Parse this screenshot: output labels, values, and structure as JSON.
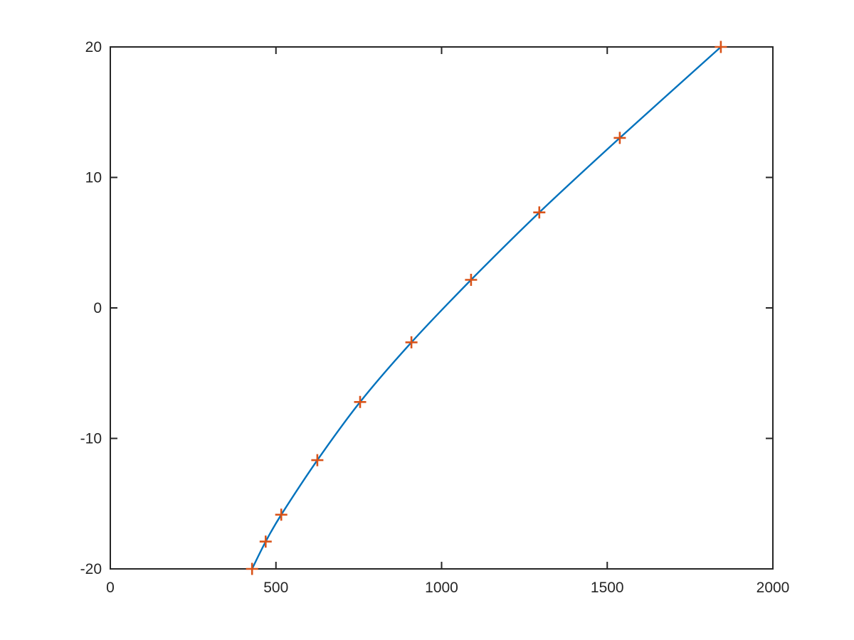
{
  "figure": {
    "background": "#ffffff",
    "axes_color": "#262626",
    "tick_label_color": "#262626"
  },
  "chart_data": {
    "type": "line",
    "title": "",
    "subtitle": "",
    "xlabel": "",
    "ylabel": "",
    "xlim": [
      0,
      2000
    ],
    "ylim": [
      -20,
      20
    ],
    "xticks": [
      0,
      500,
      1000,
      1500,
      2000
    ],
    "xtick_labels": [
      "0",
      "500",
      "1000",
      "1500",
      "2000"
    ],
    "yticks": [
      -20,
      -10,
      0,
      10,
      20
    ],
    "ytick_labels": [
      "-20",
      "-10",
      "0",
      "10",
      "20"
    ],
    "grid": false,
    "box": true,
    "tick_direction": "in",
    "legend": null,
    "series": [
      {
        "name": "fitted-curve",
        "type": "line",
        "color": "#0072BD",
        "line_width": 2.4,
        "x": [
          428,
          469,
          516,
          625,
          754,
          909,
          1089,
          1295,
          1538,
          1843
        ],
        "y": [
          -20,
          -17.91,
          -15.85,
          -11.67,
          -7.21,
          -2.64,
          2.15,
          7.32,
          13.03,
          20
        ]
      },
      {
        "name": "data-points",
        "type": "scatter",
        "marker": "plus",
        "marker_size": 17,
        "marker_line_width": 2.6,
        "color": "#D95319",
        "x": [
          428,
          469,
          516,
          625,
          754,
          909,
          1089,
          1295,
          1538,
          1843
        ],
        "y": [
          -20,
          -17.91,
          -15.85,
          -11.67,
          -7.21,
          -2.64,
          2.15,
          7.32,
          13.03,
          20
        ]
      }
    ]
  }
}
